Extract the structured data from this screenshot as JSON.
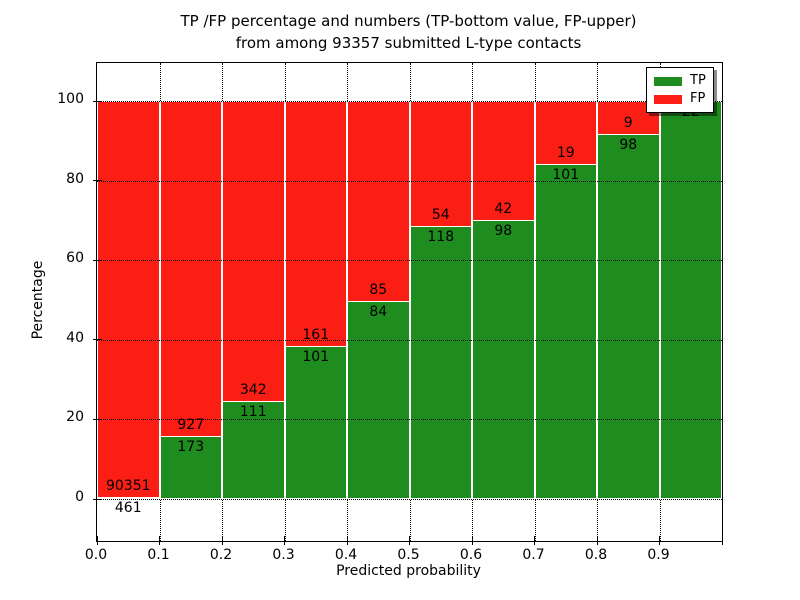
{
  "chart_data": {
    "type": "bar",
    "stacked": true,
    "normalized": "percent",
    "title_lines": [
      "TP /FP percentage and numbers (TP-bottom value, FP-upper)",
      "from among 93357 submitted L-type contacts"
    ],
    "xlabel": "Predicted probability",
    "ylabel": "Percentage",
    "total_submitted": 93357,
    "bin_edges": [
      0.0,
      0.1,
      0.2,
      0.3,
      0.4,
      0.5,
      0.6,
      0.7,
      0.8,
      0.9,
      1.0
    ],
    "x_tick_labels": [
      "0.0",
      "0.1",
      "0.2",
      "0.3",
      "0.4",
      "0.5",
      "0.6",
      "0.7",
      "0.8",
      "0.9"
    ],
    "y_tick_labels": [
      "0",
      "20",
      "40",
      "60",
      "80",
      "100"
    ],
    "y_ticks": [
      0,
      20,
      40,
      60,
      80,
      100
    ],
    "xlim": [
      0.0,
      1.0
    ],
    "ylim": [
      -10.55,
      109.55
    ],
    "grid": "dotted",
    "legend_position": "upper right",
    "series": [
      {
        "name": "TP",
        "color": "#1f8c1f",
        "values": [
          461,
          173,
          111,
          101,
          84,
          118,
          98,
          101,
          98,
          22
        ]
      },
      {
        "name": "FP",
        "color": "#fb1e14",
        "values": [
          90351,
          927,
          342,
          161,
          85,
          54,
          42,
          19,
          9,
          0
        ]
      }
    ],
    "tp_count_labels": [
      "461",
      "173",
      "111",
      "101",
      "84",
      "118",
      "98",
      "101",
      "98",
      "22"
    ],
    "fp_count_labels": [
      "90351",
      "927",
      "342",
      "161",
      "85",
      "54",
      "42",
      "19",
      "9",
      ""
    ]
  }
}
